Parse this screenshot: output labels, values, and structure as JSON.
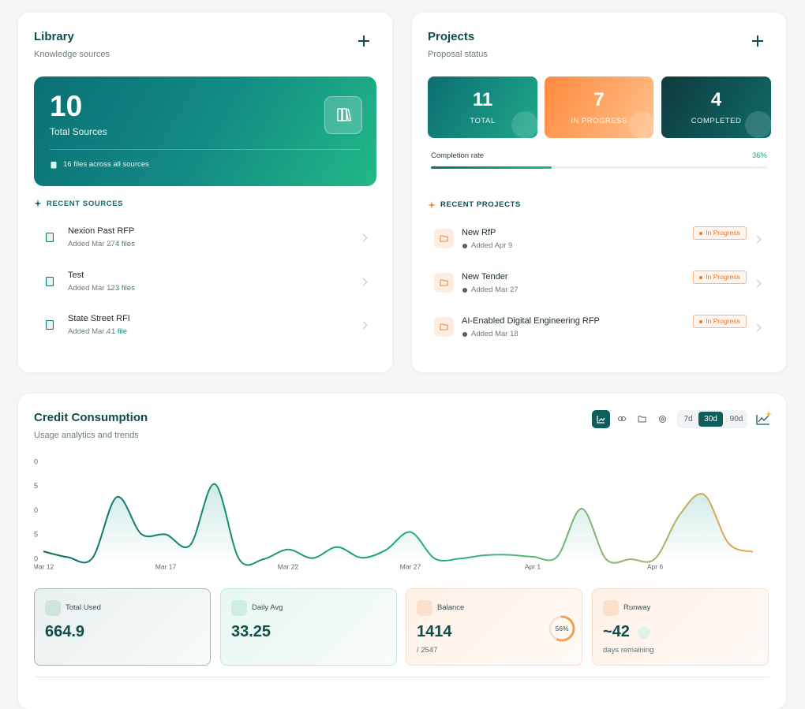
{
  "library": {
    "title": "Library",
    "subtitle": "Knowledge sources",
    "count": 10,
    "count_label": "Total Sources",
    "files_note": "16 files across all sources",
    "recent_heading": "RECENT SOURCES",
    "sources": [
      {
        "name": "Nexion Past RFP",
        "added": "Added Mar 27",
        "files": "4 files"
      },
      {
        "name": "Test",
        "added": "Added Mar 12",
        "files": "3 files"
      },
      {
        "name": "State Street RFI",
        "added": "Added Mar 4",
        "files": "1 file"
      }
    ]
  },
  "projects": {
    "title": "Projects",
    "subtitle": "Proposal status",
    "stats": [
      {
        "value": 11,
        "label": "TOTAL"
      },
      {
        "value": 7,
        "label": "IN PROGRESS"
      },
      {
        "value": 4,
        "label": "COMPLETED"
      }
    ],
    "completion": {
      "label": "Completion rate",
      "value": 36,
      "value_label": "36%"
    },
    "recent_heading": "RECENT PROJECTS",
    "items": [
      {
        "name": "New RfP",
        "added": "Added Apr 9",
        "status": "In Progress"
      },
      {
        "name": "New Tender",
        "added": "Added Mar 27",
        "status": "In Progress"
      },
      {
        "name": "AI-Enabled Digital Engineering RFP",
        "added": "Added Mar 18",
        "status": "In Progress"
      }
    ]
  },
  "credits": {
    "title": "Credit Consumption",
    "subtitle": "Usage analytics and trends",
    "ranges": [
      "7d",
      "30d",
      "90d"
    ],
    "active_range": "30d",
    "chart": {
      "type": "line",
      "categories": [
        "Mar 12",
        null,
        null,
        null,
        null,
        "Mar 17",
        null,
        null,
        null,
        null,
        "Mar 22",
        null,
        null,
        null,
        null,
        "Mar 27",
        null,
        null,
        null,
        null,
        "Apr 1",
        null,
        null,
        null,
        null,
        "Apr 6",
        null,
        null,
        null,
        null
      ],
      "values": [
        1.6,
        0.4,
        0.2,
        12.8,
        5.2,
        5.1,
        2.9,
        15.5,
        0,
        0,
        2.0,
        0.2,
        2.5,
        0.3,
        1.9,
        5.6,
        0.1,
        0.1,
        0.8,
        0.9,
        0.5,
        0.5,
        10.4,
        0,
        0,
        0.1,
        9.1,
        13.3,
        3.3,
        1.5
      ],
      "ylim": [
        0,
        20
      ],
      "yticks": [
        0,
        5,
        10,
        15,
        20
      ]
    },
    "stats": [
      {
        "label": "Total Used",
        "value": "664.9"
      },
      {
        "label": "Daily Avg",
        "value": "33.25"
      },
      {
        "label": "Balance",
        "value": "1414",
        "sub": "/ 2547",
        "ring": 56,
        "ring_label": "56%"
      },
      {
        "label": "Runway",
        "value": "~42",
        "sub": "days remaining"
      }
    ]
  }
}
